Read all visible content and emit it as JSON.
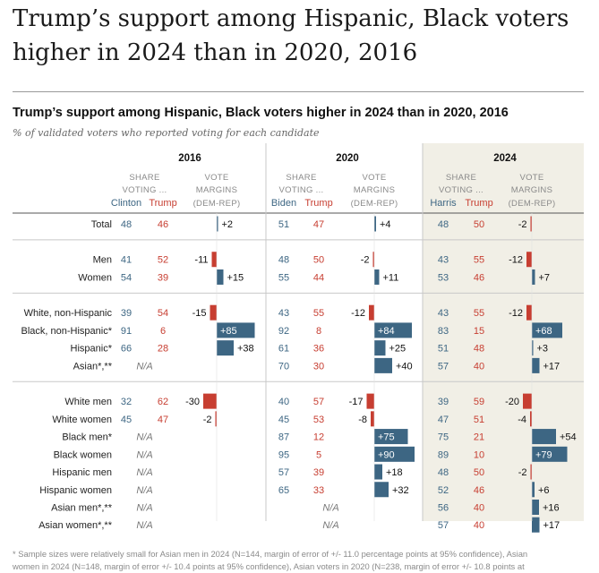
{
  "article": {
    "headline_line1": "Trump’s support among Hispanic, Black voters",
    "headline_line2": "higher in 2024 than in 2020, 2016"
  },
  "chart_data": {
    "type": "table",
    "title": "Trump’s support among Hispanic, Black voters higher in 2024 than in 2020, 2016",
    "subtitle": "% of validated voters who reported voting for each candidate",
    "header_share": [
      "SHARE",
      "VOTING ..."
    ],
    "header_margin": [
      "VOTE",
      "MARGINS",
      "(DEM-REP)"
    ],
    "na_label": "N/A",
    "colors": {
      "dem": "#3d6683",
      "rep": "#c73e31",
      "panel_2024": "#f1efe6"
    },
    "years": [
      {
        "year": "2016",
        "dem_name": "Clinton",
        "rep_name": "Trump"
      },
      {
        "year": "2020",
        "dem_name": "Biden",
        "rep_name": "Trump"
      },
      {
        "year": "2024",
        "dem_name": "Harris",
        "rep_name": "Trump"
      }
    ],
    "rows": [
      {
        "label": "Total",
        "group": 0,
        "cells": [
          {
            "dem": "48",
            "rep": "46",
            "margin": 2,
            "margin_text": "+2"
          },
          {
            "dem": "51",
            "rep": "47",
            "margin": 4,
            "margin_text": "+4"
          },
          {
            "dem": "48",
            "rep": "50",
            "margin": -2,
            "margin_text": "-2"
          }
        ]
      },
      {
        "label": "Men",
        "group": 1,
        "cells": [
          {
            "dem": "41",
            "rep": "52",
            "margin": -11,
            "margin_text": "-11"
          },
          {
            "dem": "48",
            "rep": "50",
            "margin": -2,
            "margin_text": "-2"
          },
          {
            "dem": "43",
            "rep": "55",
            "margin": -12,
            "margin_text": "-12"
          }
        ]
      },
      {
        "label": "Women",
        "group": 1,
        "cells": [
          {
            "dem": "54",
            "rep": "39",
            "margin": 15,
            "margin_text": "+15"
          },
          {
            "dem": "55",
            "rep": "44",
            "margin": 11,
            "margin_text": "+11"
          },
          {
            "dem": "53",
            "rep": "46",
            "margin": 7,
            "margin_text": "+7"
          }
        ]
      },
      {
        "label": "White, non-Hispanic",
        "group": 2,
        "cells": [
          {
            "dem": "39",
            "rep": "54",
            "margin": -15,
            "margin_text": "-15"
          },
          {
            "dem": "43",
            "rep": "55",
            "margin": -12,
            "margin_text": "-12"
          },
          {
            "dem": "43",
            "rep": "55",
            "margin": -12,
            "margin_text": "-12"
          }
        ]
      },
      {
        "label": "Black, non-Hispanic*",
        "group": 2,
        "cells": [
          {
            "dem": "91",
            "rep": "6",
            "margin": 85,
            "margin_text": "+85"
          },
          {
            "dem": "92",
            "rep": "8",
            "margin": 84,
            "margin_text": "+84"
          },
          {
            "dem": "83",
            "rep": "15",
            "margin": 68,
            "margin_text": "+68"
          }
        ]
      },
      {
        "label": "Hispanic*",
        "group": 2,
        "cells": [
          {
            "dem": "66",
            "rep": "28",
            "margin": 38,
            "margin_text": "+38"
          },
          {
            "dem": "61",
            "rep": "36",
            "margin": 25,
            "margin_text": "+25"
          },
          {
            "dem": "51",
            "rep": "48",
            "margin": 3,
            "margin_text": "+3"
          }
        ]
      },
      {
        "label": "Asian*,**",
        "group": 2,
        "cells": [
          {
            "na": "share"
          },
          {
            "dem": "70",
            "rep": "30",
            "margin": 40,
            "margin_text": "+40"
          },
          {
            "dem": "57",
            "rep": "40",
            "margin": 17,
            "margin_text": "+17"
          }
        ]
      },
      {
        "label": "White men",
        "group": 3,
        "cells": [
          {
            "dem": "32",
            "rep": "62",
            "margin": -30,
            "margin_text": "-30"
          },
          {
            "dem": "40",
            "rep": "57",
            "margin": -17,
            "margin_text": "-17"
          },
          {
            "dem": "39",
            "rep": "59",
            "margin": -20,
            "margin_text": "-20"
          }
        ]
      },
      {
        "label": "White women",
        "group": 3,
        "cells": [
          {
            "dem": "45",
            "rep": "47",
            "margin": -2,
            "margin_text": "-2"
          },
          {
            "dem": "45",
            "rep": "53",
            "margin": -8,
            "margin_text": "-8"
          },
          {
            "dem": "47",
            "rep": "51",
            "margin": -4,
            "margin_text": "-4"
          }
        ]
      },
      {
        "label": "Black men*",
        "group": 3,
        "cells": [
          {
            "na": "share"
          },
          {
            "dem": "87",
            "rep": "12",
            "margin": 75,
            "margin_text": "+75"
          },
          {
            "dem": "75",
            "rep": "21",
            "margin": 54,
            "margin_text": "+54"
          }
        ]
      },
      {
        "label": "Black women",
        "group": 3,
        "cells": [
          {
            "na": "share"
          },
          {
            "dem": "95",
            "rep": "5",
            "margin": 90,
            "margin_text": "+90"
          },
          {
            "dem": "89",
            "rep": "10",
            "margin": 79,
            "margin_text": "+79"
          }
        ]
      },
      {
        "label": "Hispanic men",
        "group": 3,
        "cells": [
          {
            "na": "share"
          },
          {
            "dem": "57",
            "rep": "39",
            "margin": 18,
            "margin_text": "+18"
          },
          {
            "dem": "48",
            "rep": "50",
            "margin": -2,
            "margin_text": "-2"
          }
        ]
      },
      {
        "label": "Hispanic women",
        "group": 3,
        "cells": [
          {
            "na": "share"
          },
          {
            "dem": "65",
            "rep": "33",
            "margin": 32,
            "margin_text": "+32"
          },
          {
            "dem": "52",
            "rep": "46",
            "margin": 6,
            "margin_text": "+6"
          }
        ]
      },
      {
        "label": "Asian men*,**",
        "group": 3,
        "cells": [
          {
            "na": "share"
          },
          {
            "na": "center"
          },
          {
            "dem": "56",
            "rep": "40",
            "margin": 16,
            "margin_text": "+16"
          }
        ]
      },
      {
        "label": "Asian women*,**",
        "group": 3,
        "cells": [
          {
            "na": "share"
          },
          {
            "na": "center"
          },
          {
            "dem": "57",
            "rep": "40",
            "margin": 17,
            "margin_text": "+17"
          }
        ]
      }
    ],
    "footnote": [
      "* Sample sizes were relatively small for Asian men in 2024 (N=144, margin of error of +/- 11.0 percentage points at 95% confidence), Asian",
      "women in 2024 (N=148, margin of error +/- 10.4 points at 95% confidence), Asian voters in 2020 (N=238, margin of error +/- 10.8 points at"
    ]
  }
}
